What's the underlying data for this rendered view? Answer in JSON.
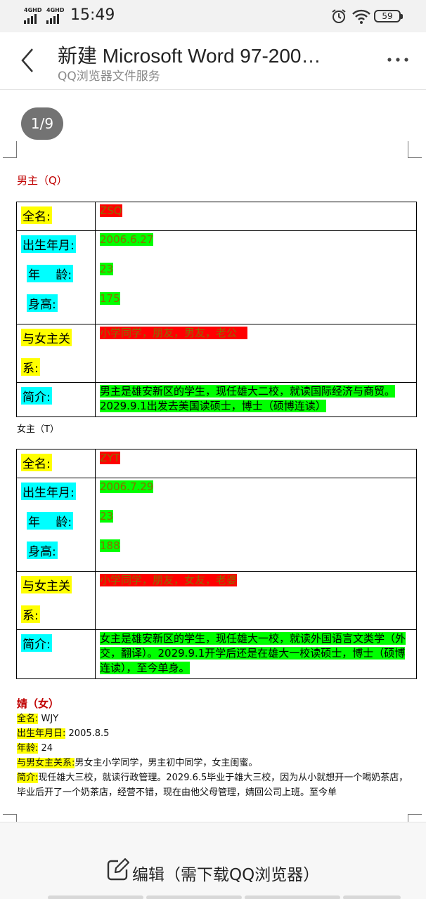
{
  "status_bar": {
    "sim1": "4GHD",
    "sim2": "4GHD",
    "time": "15:49",
    "battery": "59",
    "icons": [
      "alarm-icon",
      "wifi-icon",
      "battery-icon"
    ]
  },
  "header": {
    "title": "新建 Microsoft Word 97-200…",
    "subtitle": "QQ浏览器文件服务",
    "more": "⋮"
  },
  "page_indicator": "1/9",
  "male": {
    "heading": "男主（Q）",
    "name_label": "全名:",
    "name_value": "ZSQ",
    "birth_label": "出生年月:",
    "birth_value": "2006.6.27",
    "age_label": "年　 龄:",
    "age_value": "23",
    "height_label": "身高:",
    "height_value": "175",
    "relation_label_1": "与女主关",
    "relation_label_2": "系:",
    "relation_value": "小学同学，朋友，男友，老公　",
    "intro_label": "简介:",
    "intro_value": "男主是雄安新区的学生，现任雄大二校，就读国际经济与商贸。2029.9.1出发去美国读硕士，博士（硕博连读）"
  },
  "female": {
    "heading": "女主（T）",
    "name_label": "全名:",
    "name_value": "ZYT",
    "birth_label": "出生年月:",
    "birth_value": "2006.7.29",
    "age_label": "年　 龄:",
    "age_value": "23",
    "height_label": "身高:",
    "height_value": "188",
    "relation_label_1": "与女主关",
    "relation_label_2": "系:",
    "relation_value": "小学同学，朋友，女友，老婆",
    "intro_label": "简介:",
    "intro_value": "女主是雄安新区的学生，现任雄大一校，就读外国语言文类学（外交，翻译）。2029.9.1开学后还是在雄大一校读硕士，博士（硕博连读），至今单身。"
  },
  "third": {
    "heading": "婧（女）",
    "name_label": "全名:",
    "name_value": " WJY",
    "birth_label": "出生年月日:",
    "birth_value": " 2005.8.5",
    "age_label": "年龄:",
    "age_value": " 24",
    "relation_label": "与男女主关系:",
    "relation_value": "男女主小学同学，男主初中同学，女主闺蜜。",
    "intro_label": "简介:",
    "intro_value": "现任雄大三校，就读行政管理。2029.6.5毕业于雄大三校，因为从小就想开一个喝奶茶店，毕业后开了一个奶茶店，经营不错，现在由他父母管理，婧回公司上班。至今单"
  },
  "bottom": {
    "edit_label": "编辑（需下载QQ浏览器）"
  }
}
